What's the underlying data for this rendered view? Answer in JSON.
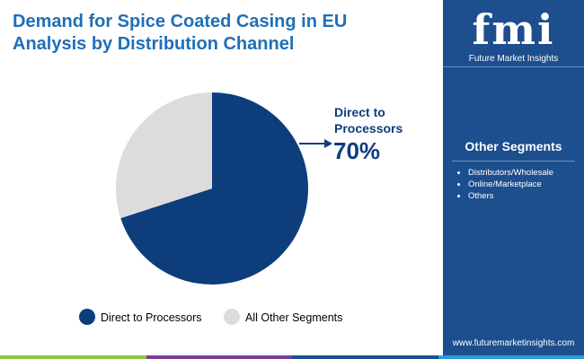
{
  "chart_data": {
    "type": "pie",
    "title": "Demand for Spice Coated Casing in EU",
    "subtitle": "Analysis by Distribution Channel",
    "categories": [
      "Direct to Processors",
      "All Other Segments"
    ],
    "values": [
      70,
      30
    ],
    "value_labels": [
      "70%",
      null
    ],
    "colors": [
      "#0e3d7c",
      "#dcdcdc"
    ],
    "legend": "bottom"
  },
  "panel": {
    "heading": "Other Segments",
    "items": [
      "Distributors/Wholesale",
      "Online/Marketplace",
      "Others"
    ]
  },
  "brand": {
    "logo": "fmi",
    "name": "Future Market Insights",
    "url": "www.futuremarketinsights.com"
  }
}
